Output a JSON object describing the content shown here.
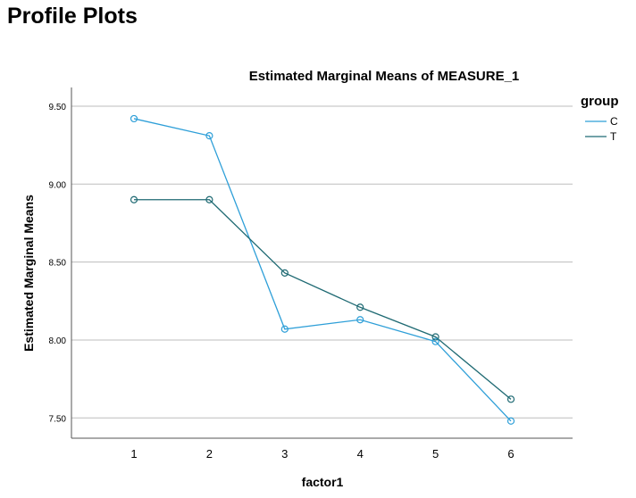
{
  "page": {
    "heading": "Profile Plots"
  },
  "chart_data": {
    "type": "line",
    "title": "Estimated Marginal Means of MEASURE_1",
    "xlabel": "factor1",
    "ylabel": "Estimated Marginal Means",
    "categories": [
      "1",
      "2",
      "3",
      "4",
      "5",
      "6"
    ],
    "ylim": [
      7.37,
      9.62
    ],
    "yticks": [
      7.5,
      8.0,
      8.5,
      9.0,
      9.5
    ],
    "ytick_labels": [
      "7.50",
      "8.00",
      "8.50",
      "9.00",
      "9.50"
    ],
    "grid": "horizontal",
    "legend": {
      "title": "group",
      "placement": "right"
    },
    "series": [
      {
        "name": "C",
        "color": "#2e9fd8",
        "values": [
          9.42,
          9.31,
          8.07,
          8.13,
          7.99,
          7.48
        ]
      },
      {
        "name": "T",
        "color": "#1f6a73",
        "values": [
          8.9,
          8.9,
          8.43,
          8.21,
          8.02,
          7.62
        ]
      }
    ]
  }
}
